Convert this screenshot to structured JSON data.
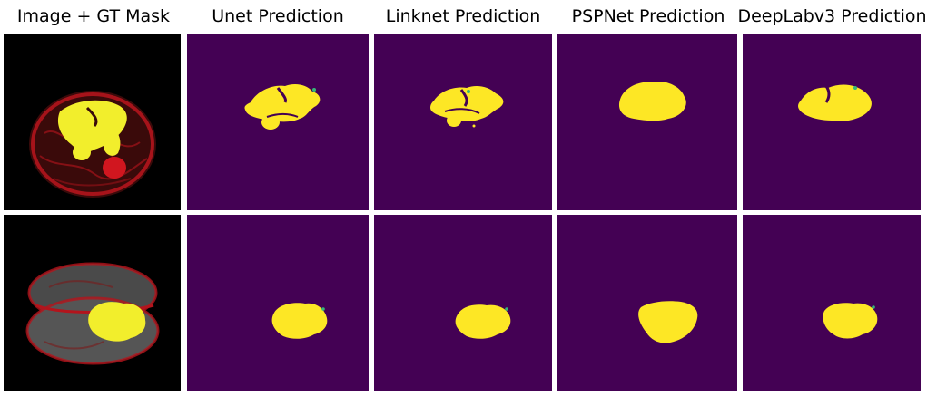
{
  "columns": [
    {
      "title": "Image + GT Mask"
    },
    {
      "title": "Unet Prediction"
    },
    {
      "title": "Linknet Prediction"
    },
    {
      "title": "PSPNet Prediction"
    },
    {
      "title": "DeepLabv3 Prediction"
    }
  ],
  "colors": {
    "mask_background": "#440154",
    "mask_foreground": "#fde725",
    "mask_edge": "#35b779",
    "image_background": "#000000",
    "tissue_red": "#b3141c",
    "tissue_gray": "#5a5a5a",
    "gt_yellow": "#f2ee2c"
  }
}
